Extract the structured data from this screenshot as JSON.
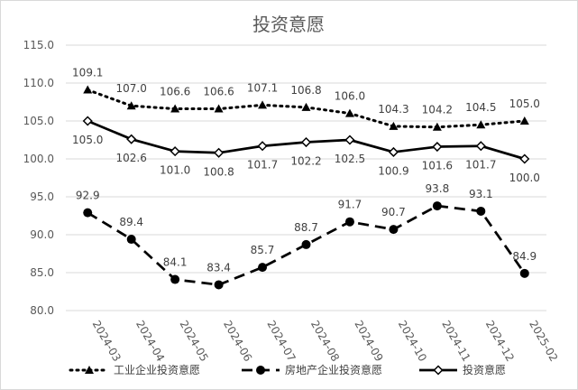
{
  "chart_data": {
    "type": "line",
    "title": "投资意愿",
    "categories": [
      "2024-03",
      "2024-04",
      "2024-05",
      "2024-06",
      "2024-07",
      "2024-08",
      "2024-09",
      "2024-10",
      "2024-11",
      "2024-12",
      "2025-02"
    ],
    "series": [
      {
        "name": "工业企业投资意愿",
        "values": [
          109.1,
          107.0,
          106.6,
          106.6,
          107.1,
          106.8,
          106.0,
          104.3,
          104.2,
          104.5,
          105.0
        ],
        "style": "dotted",
        "marker": "triangle",
        "color": "#000000"
      },
      {
        "name": "房地产企业投资意愿",
        "values": [
          92.9,
          89.4,
          84.1,
          83.4,
          85.7,
          88.7,
          91.7,
          90.7,
          93.8,
          93.1,
          84.9
        ],
        "style": "dashed",
        "marker": "circle",
        "color": "#000000"
      },
      {
        "name": "投资意愿",
        "values": [
          105.0,
          102.6,
          101.0,
          100.8,
          101.7,
          102.2,
          102.5,
          100.9,
          101.6,
          101.7,
          100.0
        ],
        "style": "solid",
        "marker": "diamond",
        "color": "#000000"
      }
    ],
    "value_labels": [
      [
        "109.1",
        "107.0",
        "106.6",
        "106.6",
        "107.1",
        "106.8",
        "106.0",
        "104.3",
        "104.2",
        "104.5",
        "105.0"
      ],
      [
        "92.9",
        "89.4",
        "84.1",
        "83.4",
        "85.7",
        "88.7",
        "91.7",
        "90.7",
        "93.8",
        "93.1",
        "84.9"
      ],
      [
        "105.0",
        "102.6",
        "101.0",
        "100.8",
        "101.7",
        "102.2",
        "102.5",
        "100.9",
        "101.6",
        "101.7",
        "100.0"
      ]
    ],
    "y_ticks": [
      "80.0",
      "85.0",
      "90.0",
      "95.0",
      "100.0",
      "105.0",
      "110.0",
      "115.0"
    ],
    "ylim": [
      80,
      115
    ],
    "grid": true,
    "legend_position": "bottom"
  }
}
